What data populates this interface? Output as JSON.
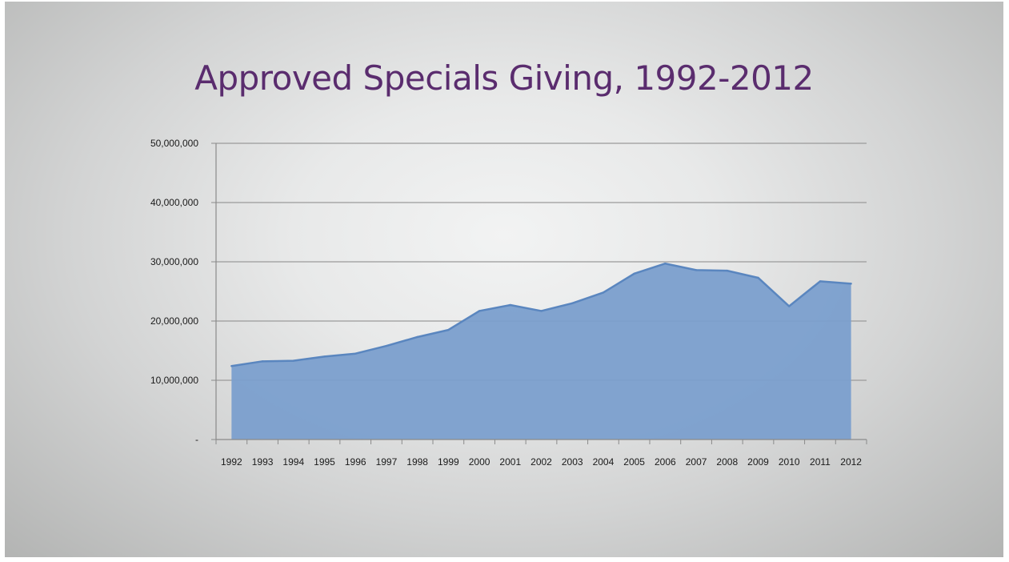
{
  "chart_data": {
    "type": "area",
    "title": "Approved Specials Giving, 1992-2012",
    "xlabel": "",
    "ylabel": "",
    "categories": [
      "1992",
      "1993",
      "1994",
      "1995",
      "1996",
      "1997",
      "1998",
      "1999",
      "2000",
      "2001",
      "2002",
      "2003",
      "2004",
      "2005",
      "2006",
      "2007",
      "2008",
      "2009",
      "2010",
      "2011",
      "2012"
    ],
    "series": [
      {
        "values": [
          12400000,
          13200000,
          13300000,
          14000000,
          14500000,
          15800000,
          17300000,
          18500000,
          21700000,
          22700000,
          21700000,
          23000000,
          24800000,
          28000000,
          29700000,
          28600000,
          28500000,
          27300000,
          22500000,
          26700000,
          26300000
        ]
      }
    ],
    "ylim": [
      0,
      50000000
    ],
    "yticks": [
      0,
      10000000,
      20000000,
      30000000,
      40000000,
      50000000
    ],
    "ytick_labels": [
      "-",
      "10,000,000",
      "20,000,000",
      "30,000,000",
      "40,000,000",
      "50,000,000"
    ],
    "grid": true,
    "legend": "none",
    "colors": {
      "fill": "#7b9fcd",
      "line": "#5a86bf",
      "grid": "#9a9a9a",
      "title": "#5a2c6e"
    }
  }
}
